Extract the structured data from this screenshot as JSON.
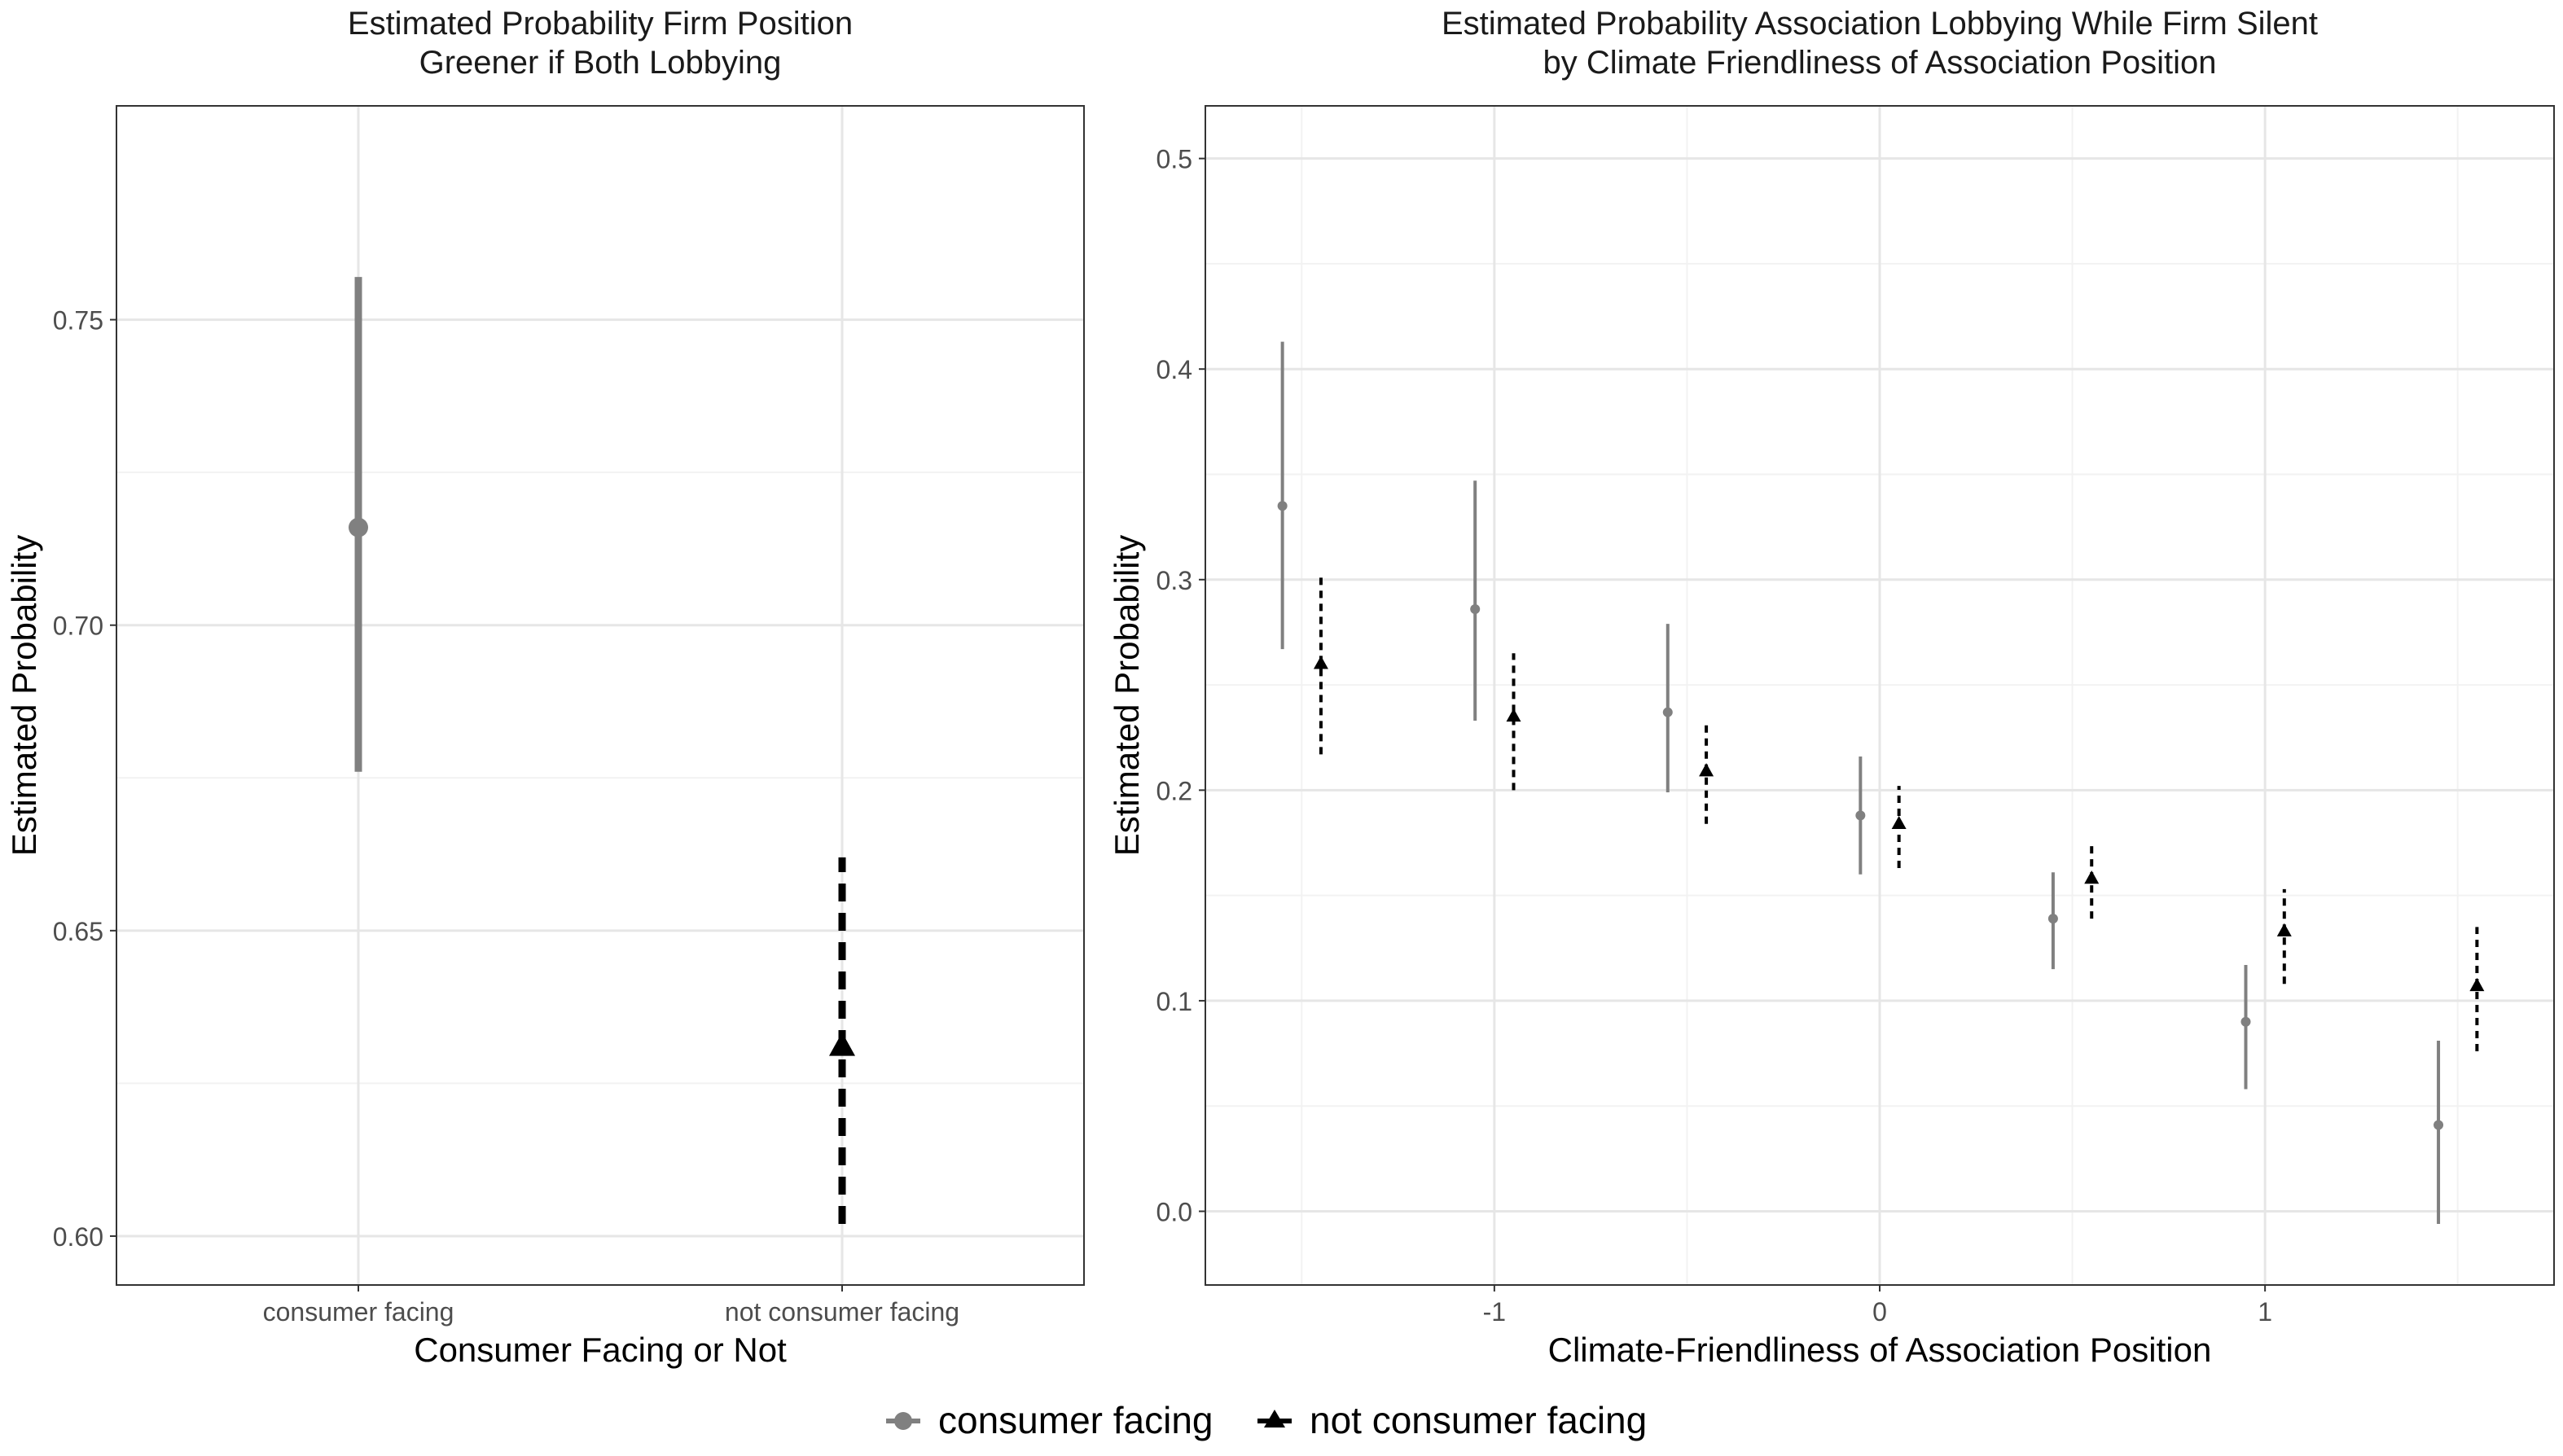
{
  "chart_data": [
    {
      "type": "scatter",
      "title": "Estimated Probability Firm Position\nGreener if Both Lobbying",
      "xlabel": "Consumer Facing or Not",
      "ylabel": "Estimated Probability",
      "categories": [
        "consumer facing",
        "not consumer facing"
      ],
      "ylim": [
        0.592,
        0.785
      ],
      "yticks": [
        0.6,
        0.65,
        0.7,
        0.75
      ],
      "ytick_labels": [
        "0.60",
        "0.65",
        "0.70",
        "0.75"
      ],
      "grid": true,
      "series": [
        {
          "name": "consumer facing",
          "color": "#808080",
          "marker": "circle",
          "line": "solid",
          "points": [
            {
              "x": "consumer facing",
              "y": 0.716,
              "low": 0.676,
              "high": 0.757
            }
          ]
        },
        {
          "name": "not consumer facing",
          "color": "#000000",
          "marker": "triangle",
          "line": "dashed",
          "points": [
            {
              "x": "not consumer facing",
              "y": 0.631,
              "low": 0.602,
              "high": 0.662
            }
          ]
        }
      ]
    },
    {
      "type": "scatter",
      "title": "Estimated Probability Association Lobbying While Firm Silent\nby Climate Friendliness of Association Position",
      "xlabel": "Climate-Friendliness of Association Position",
      "ylabel": "Estimated Probability",
      "xlim": [
        -1.75,
        1.75
      ],
      "ylim": [
        -0.035,
        0.525
      ],
      "xticks": [
        -1,
        0,
        1
      ],
      "xtick_labels": [
        "-1",
        "0",
        "1"
      ],
      "yticks": [
        0.0,
        0.1,
        0.2,
        0.3,
        0.4,
        0.5
      ],
      "ytick_labels": [
        "0.0",
        "0.1",
        "0.2",
        "0.3",
        "0.4",
        "0.5"
      ],
      "grid": true,
      "series": [
        {
          "name": "consumer facing",
          "color": "#808080",
          "marker": "circle",
          "line": "solid",
          "points": [
            {
              "x": -1.55,
              "y": 0.335,
              "low": 0.267,
              "high": 0.413
            },
            {
              "x": -1.05,
              "y": 0.286,
              "low": 0.233,
              "high": 0.347
            },
            {
              "x": -0.55,
              "y": 0.237,
              "low": 0.199,
              "high": 0.279
            },
            {
              "x": -0.05,
              "y": 0.188,
              "low": 0.16,
              "high": 0.216
            },
            {
              "x": 0.45,
              "y": 0.139,
              "low": 0.115,
              "high": 0.161
            },
            {
              "x": 0.95,
              "y": 0.09,
              "low": 0.058,
              "high": 0.117
            },
            {
              "x": 1.45,
              "y": 0.041,
              "low": -0.006,
              "high": 0.081
            }
          ]
        },
        {
          "name": "not consumer facing",
          "color": "#000000",
          "marker": "triangle",
          "line": "dashed",
          "points": [
            {
              "x": -1.45,
              "y": 0.26,
              "low": 0.217,
              "high": 0.301
            },
            {
              "x": -0.95,
              "y": 0.235,
              "low": 0.2,
              "high": 0.265
            },
            {
              "x": -0.45,
              "y": 0.209,
              "low": 0.184,
              "high": 0.233
            },
            {
              "x": 0.05,
              "y": 0.184,
              "low": 0.163,
              "high": 0.202
            },
            {
              "x": 0.55,
              "y": 0.158,
              "low": 0.139,
              "high": 0.176
            },
            {
              "x": 1.05,
              "y": 0.133,
              "low": 0.108,
              "high": 0.153
            },
            {
              "x": 1.55,
              "y": 0.107,
              "low": 0.076,
              "high": 0.135
            }
          ]
        }
      ]
    }
  ],
  "legend": {
    "placement": "bottom",
    "items": [
      {
        "label": "consumer facing",
        "color": "#808080",
        "marker": "circle"
      },
      {
        "label": "not consumer facing",
        "color": "#000000",
        "marker": "triangle"
      }
    ]
  }
}
